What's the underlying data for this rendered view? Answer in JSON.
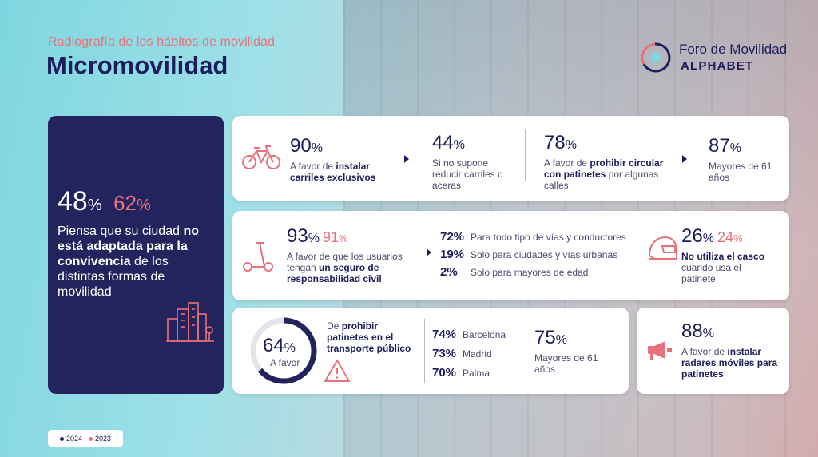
{
  "header": {
    "subtitle": "Radiografía de los hábitos de movilidad",
    "title": "Micromovilidad"
  },
  "logo": {
    "line1": "Foro de Movilidad",
    "line2": "ALPHABET"
  },
  "left_card": {
    "value_2024": "48",
    "value_2023": "62",
    "percent": "%",
    "text_pre": "Piensa que su ciudad ",
    "text_bold": "no está adaptada para la convivencia",
    "text_post": " de los distintas formas de movilidad",
    "icon": "city-buildings-icon"
  },
  "row1": {
    "icon": "bicycle-icon",
    "stat1_value": "90",
    "stat1_pre": "A favor de ",
    "stat1_bold": "instalar carriles exclusivos",
    "stat2_value": "44",
    "stat2_text": "Si no supone reducir carriles o aceras",
    "stat3_value": "78",
    "stat3_pre": "A favor de ",
    "stat3_bold": "prohibir circular con patinetes",
    "stat3_post": " por algunas calles",
    "stat4_value": "87",
    "stat4_text": "Mayores de 61 años"
  },
  "row2": {
    "icon": "scooter-icon",
    "stat1_value": "93",
    "stat1_value_2023": "91",
    "stat1_pre": "A favor de que los usuarios tengan ",
    "stat1_bold": "un seguro de responsabilidad civil",
    "breakdown": [
      {
        "value": "72%",
        "label": "Para todo tipo de vías y conductores"
      },
      {
        "value": "19%",
        "label": "Solo para ciudades y vías urbanas"
      },
      {
        "value": "2%",
        "label": "Solo para mayores de edad"
      }
    ],
    "helmet_icon": "helmet-icon",
    "stat2_value": "26",
    "stat2_value_2023": "24",
    "stat2_bold": "No utiliza el casco",
    "stat2_text": "cuando usa el patinete"
  },
  "row3": {
    "ring_value": "64",
    "ring_fraction": 0.64,
    "ring_label": "A favor",
    "text_pre": "De ",
    "text_bold": "prohibir patinetes en el transporte público",
    "warning_icon": "warning-icon",
    "cities": [
      {
        "value": "74%",
        "label": "Barcelona"
      },
      {
        "value": "73%",
        "label": "Madrid"
      },
      {
        "value": "70%",
        "label": "Palma"
      }
    ],
    "stat_value": "75",
    "stat_text": "Mayores de 61 años"
  },
  "row3b": {
    "icon": "megaphone-icon",
    "stat_value": "88",
    "stat_pre": "A favor de ",
    "stat_bold": "instalar radares móviles para patinetes"
  },
  "legend": {
    "year1": "2024",
    "year2": "2023",
    "color1": "#1c1d5c",
    "color2": "#e8727a"
  },
  "colors": {
    "navy": "#1c1d5c",
    "accent": "#e8727a",
    "card_dark": "#23245e"
  }
}
